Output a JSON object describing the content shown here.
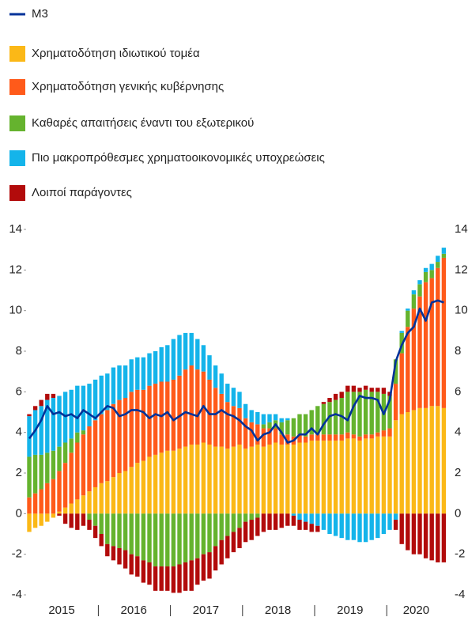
{
  "chart_data": {
    "type": "bar",
    "stacked": true,
    "categories": [
      null,
      null,
      null,
      null,
      null,
      "2015",
      null,
      null,
      null,
      null,
      null,
      null,
      null,
      null,
      null,
      null,
      null,
      "2016",
      null,
      null,
      null,
      null,
      null,
      null,
      null,
      null,
      null,
      null,
      null,
      "2017",
      null,
      null,
      null,
      null,
      null,
      null,
      null,
      null,
      null,
      null,
      null,
      "2018",
      null,
      null,
      null,
      null,
      null,
      null,
      null,
      null,
      null,
      null,
      null,
      "2019",
      null,
      null,
      null,
      null,
      null,
      null,
      null,
      null,
      null,
      null,
      "2020",
      null,
      null,
      null,
      null,
      null
    ],
    "ylim": [
      -4,
      14
    ],
    "yticks": [
      -4,
      -2,
      0,
      2,
      4,
      6,
      8,
      10,
      12,
      14
    ],
    "series": [
      {
        "name": "M3",
        "type": "line",
        "color": "#003299",
        "values": [
          3.7,
          4.1,
          4.6,
          5.3,
          4.9,
          5.0,
          4.8,
          4.9,
          4.7,
          5.1,
          4.9,
          4.7,
          5.0,
          5.3,
          5.2,
          4.8,
          4.9,
          5.1,
          5.1,
          5.0,
          4.7,
          4.9,
          4.8,
          5.0,
          4.6,
          4.8,
          5.0,
          4.9,
          4.8,
          5.3,
          4.9,
          4.9,
          5.1,
          4.9,
          4.8,
          4.6,
          4.3,
          4.1,
          3.6,
          3.9,
          4.0,
          4.4,
          4.0,
          3.5,
          3.6,
          3.9,
          3.9,
          4.2,
          3.9,
          4.4,
          4.8,
          4.9,
          4.8,
          4.6,
          5.3,
          5.8,
          5.7,
          5.7,
          5.6,
          4.9,
          5.6,
          7.5,
          8.3,
          8.9,
          9.2,
          10.1,
          9.5,
          10.4,
          10.5,
          10.4
        ]
      },
      {
        "name": "Χρηματοδότηση ιδιωτικού τομέα",
        "type": "bar",
        "color": "#fbb817",
        "values": [
          -0.9,
          -0.7,
          -0.6,
          -0.4,
          -0.2,
          0.1,
          0.3,
          0.5,
          0.7,
          0.9,
          1.1,
          1.3,
          1.5,
          1.6,
          1.8,
          2.0,
          2.1,
          2.3,
          2.5,
          2.6,
          2.8,
          2.9,
          3.0,
          3.1,
          3.1,
          3.2,
          3.3,
          3.4,
          3.4,
          3.5,
          3.4,
          3.3,
          3.3,
          3.2,
          3.3,
          3.4,
          3.2,
          3.3,
          3.4,
          3.3,
          3.4,
          3.5,
          3.4,
          3.4,
          3.4,
          3.5,
          3.5,
          3.6,
          3.6,
          3.6,
          3.6,
          3.6,
          3.6,
          3.7,
          3.7,
          3.6,
          3.7,
          3.7,
          3.8,
          3.8,
          3.8,
          4.6,
          4.9,
          5.0,
          5.1,
          5.2,
          5.2,
          5.3,
          5.3,
          5.2
        ]
      },
      {
        "name": "Χρηματοδότηση γενικής κυβέρνησης",
        "type": "bar",
        "color": "#ff5a1a",
        "values": [
          0.8,
          1.0,
          1.2,
          1.5,
          1.7,
          2.0,
          2.2,
          2.5,
          2.8,
          3.0,
          3.2,
          3.3,
          3.4,
          3.5,
          3.6,
          3.6,
          3.6,
          3.7,
          3.6,
          3.5,
          3.5,
          3.5,
          3.5,
          3.4,
          3.5,
          3.6,
          3.8,
          3.9,
          3.7,
          3.5,
          3.2,
          2.9,
          2.6,
          2.3,
          2.0,
          1.8,
          1.5,
          1.2,
          1.0,
          0.9,
          0.8,
          0.7,
          0.5,
          0.5,
          0.4,
          0.4,
          0.3,
          0.3,
          0.3,
          0.3,
          0.3,
          0.3,
          0.3,
          0.3,
          0.2,
          0.2,
          0.2,
          0.2,
          0.2,
          0.3,
          0.4,
          1.8,
          3.0,
          4.2,
          5.0,
          5.5,
          6.2,
          6.3,
          6.8,
          7.4
        ]
      },
      {
        "name": "Καθαρές απαιτήσεις έναντι του εξωτερικού",
        "type": "bar",
        "color": "#65b32e",
        "values": [
          2.0,
          1.9,
          1.7,
          1.5,
          1.4,
          1.2,
          1.0,
          0.7,
          0.5,
          0.2,
          -0.3,
          -0.6,
          -1.0,
          -1.5,
          -1.6,
          -1.7,
          -1.8,
          -2.0,
          -2.1,
          -2.3,
          -2.4,
          -2.6,
          -2.6,
          -2.6,
          -2.6,
          -2.5,
          -2.4,
          -2.3,
          -2.2,
          -2.0,
          -1.9,
          -1.6,
          -1.3,
          -1.1,
          -0.9,
          -0.7,
          -0.4,
          -0.3,
          -0.2,
          0.2,
          0.3,
          0.4,
          0.6,
          0.7,
          0.9,
          1.0,
          1.1,
          1.2,
          1.4,
          1.5,
          1.6,
          1.7,
          1.8,
          2.0,
          2.1,
          2.2,
          2.2,
          2.1,
          2.0,
          1.8,
          1.6,
          1.2,
          1.0,
          0.8,
          0.7,
          0.6,
          0.5,
          0.4,
          0.3,
          0.2
        ]
      },
      {
        "name": "Πιο μακροπρόθεσμες χρηματοοικονομικές υποχρεώσεις",
        "type": "bar",
        "color": "#14b4ea",
        "values": [
          2.0,
          2.2,
          2.4,
          2.6,
          2.6,
          2.5,
          2.5,
          2.4,
          2.3,
          2.2,
          2.1,
          2.0,
          1.9,
          1.8,
          1.8,
          1.7,
          1.6,
          1.6,
          1.6,
          1.6,
          1.6,
          1.6,
          1.7,
          1.8,
          2.0,
          2.0,
          1.8,
          1.6,
          1.5,
          1.3,
          1.2,
          1.1,
          1.0,
          0.9,
          0.9,
          0.8,
          0.7,
          0.6,
          0.6,
          0.5,
          0.4,
          0.3,
          0.2,
          0.1,
          -0.1,
          -0.3,
          -0.4,
          -0.5,
          -0.6,
          -0.8,
          -1.0,
          -1.1,
          -1.2,
          -1.3,
          -1.3,
          -1.4,
          -1.4,
          -1.3,
          -1.2,
          -1.0,
          -0.8,
          -0.3,
          0.1,
          0.1,
          0.2,
          0.2,
          0.2,
          0.3,
          0.3,
          0.3
        ]
      },
      {
        "name": "Λοιποί παράγοντες",
        "type": "bar",
        "color": "#b20b0b",
        "values": [
          0.1,
          0.2,
          0.3,
          0.3,
          0.2,
          -0.1,
          -0.5,
          -0.7,
          -0.8,
          -0.6,
          -0.5,
          -0.6,
          -0.6,
          -0.6,
          -0.7,
          -0.8,
          -0.9,
          -1.0,
          -1.0,
          -1.1,
          -1.1,
          -1.2,
          -1.2,
          -1.2,
          -1.3,
          -1.4,
          -1.4,
          -1.5,
          -1.3,
          -1.3,
          -1.3,
          -1.2,
          -1.2,
          -1.1,
          -1.0,
          -1.0,
          -1.0,
          -1.0,
          -0.9,
          -0.9,
          -0.8,
          -0.8,
          -0.7,
          -0.6,
          -0.5,
          -0.5,
          -0.4,
          -0.4,
          -0.3,
          0.1,
          0.2,
          0.3,
          0.3,
          0.3,
          0.3,
          0.2,
          0.2,
          0.2,
          0.2,
          0.3,
          0.2,
          -0.5,
          -1.5,
          -1.8,
          -2.0,
          -2.0,
          -2.2,
          -2.3,
          -2.4,
          -2.4
        ]
      }
    ]
  }
}
